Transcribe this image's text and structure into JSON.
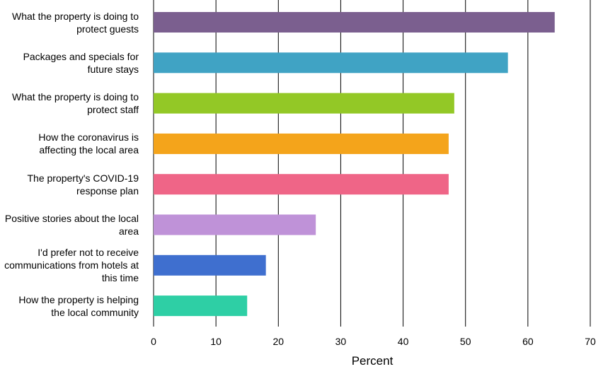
{
  "chart_data": {
    "type": "bar",
    "orientation": "horizontal",
    "categories": [
      "What the property is doing to protect guests",
      "Packages and specials for future stays",
      "What the property is doing to protect staff",
      "How the coronavirus is affecting the local area",
      "The property's COVID-19 response plan",
      "Positive stories about the local area",
      "I'd prefer not to receive communications from hotels at this time",
      "How the property is helping the local community"
    ],
    "values": [
      64.3,
      56.8,
      48.2,
      47.3,
      47.3,
      26.0,
      18.0,
      15.0
    ],
    "colors": [
      "#7b5f8f",
      "#40a3c4",
      "#93c826",
      "#f4a41b",
      "#ef6587",
      "#bf92d8",
      "#3f6fcf",
      "#2ecfa5"
    ],
    "xlabel": "Percent",
    "ylabel": "",
    "title": "",
    "xlim": [
      0,
      70
    ],
    "xticks": [
      0,
      10,
      20,
      30,
      40,
      50,
      60,
      70
    ],
    "grid": "vertical"
  }
}
